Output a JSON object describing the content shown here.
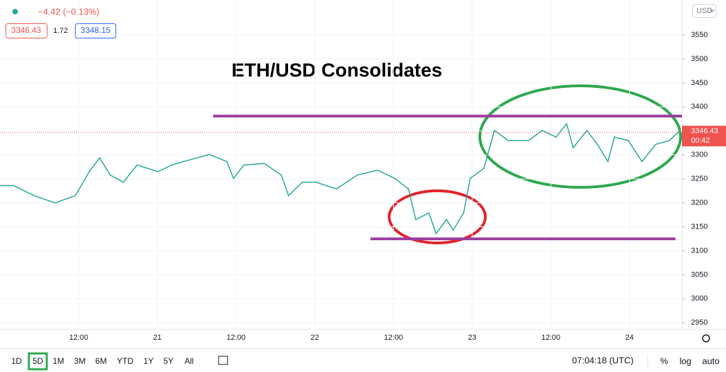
{
  "chart_data": {
    "type": "line",
    "title": "ETH/USD Consolidates",
    "change": "−4.42 (−0.13%)",
    "bid": "3346.43",
    "spread": "1.72",
    "ask": "3348.15",
    "currency": "USD",
    "x": [
      0,
      2.1,
      5.2,
      8.4,
      11.5,
      13.6,
      15.2,
      16.8,
      18.8,
      20.9,
      24.1,
      26.2,
      29.3,
      31.9,
      34.6,
      35.6,
      37.2,
      40.3,
      42.9,
      44,
      46.1,
      48.2,
      51.3,
      54.5,
      57.6,
      60.2,
      62.3,
      63.4,
      65.4,
      66.5,
      68.1,
      69.1,
      70.7,
      71.7,
      73.8,
      75.4,
      77.5,
      80.6,
      82.7,
      84.8,
      86.4,
      87.4,
      89.5,
      91.1,
      92.7,
      93.7,
      95.8,
      97.9,
      100,
      102.1,
      103.7
    ],
    "series": [
      {
        "name": "ETH/USD",
        "color": "#26a69a",
        "values": [
          3236,
          3236,
          3215,
          3200,
          3215,
          3265,
          3294,
          3258,
          3243,
          3279,
          3265,
          3279,
          3291,
          3301,
          3286,
          3251,
          3279,
          3282,
          3258,
          3215,
          3243,
          3243,
          3229,
          3258,
          3268,
          3251,
          3229,
          3165,
          3179,
          3136,
          3165,
          3143,
          3179,
          3251,
          3272,
          3351,
          3330,
          3330,
          3351,
          3337,
          3365,
          3315,
          3351,
          3322,
          3286,
          3337,
          3330,
          3286,
          3322,
          3330,
          3351
        ]
      }
    ],
    "xlim": [
      0,
      104
    ],
    "xticks": [
      {
        "value": 12,
        "label": "12:00"
      },
      21,
      {
        "value": 36,
        "label": "12:00"
      },
      22,
      {
        "value": 60,
        "label": "12:00"
      },
      23,
      {
        "value": 84,
        "label": "12:00"
      },
      24
    ],
    "xtick_positions": [
      12,
      24,
      36,
      48,
      60,
      72,
      84,
      96
    ],
    "ylim": [
      2936,
      3623
    ],
    "yticks": [
      2950,
      3000,
      3050,
      3100,
      3150,
      3200,
      3250,
      3300,
      3350,
      3400,
      3450,
      3500,
      3550
    ],
    "levels": [
      {
        "value": 3381,
        "x": [
          32.5,
          104
        ],
        "color": "#9c3fa0"
      },
      {
        "value": 3125,
        "x": [
          56.5,
          103
        ],
        "color": "#9c3fa0"
      }
    ],
    "last_price": 3346.43,
    "countdown": "00:42",
    "timeframes": [
      "1D",
      "5D",
      "1M",
      "3M",
      "6M",
      "YTD",
      "1Y",
      "5Y",
      "All"
    ],
    "selected_timeframe": 1,
    "clock": "07:04:18 (UTC)",
    "scale_options": [
      "%",
      "log",
      "auto"
    ]
  }
}
